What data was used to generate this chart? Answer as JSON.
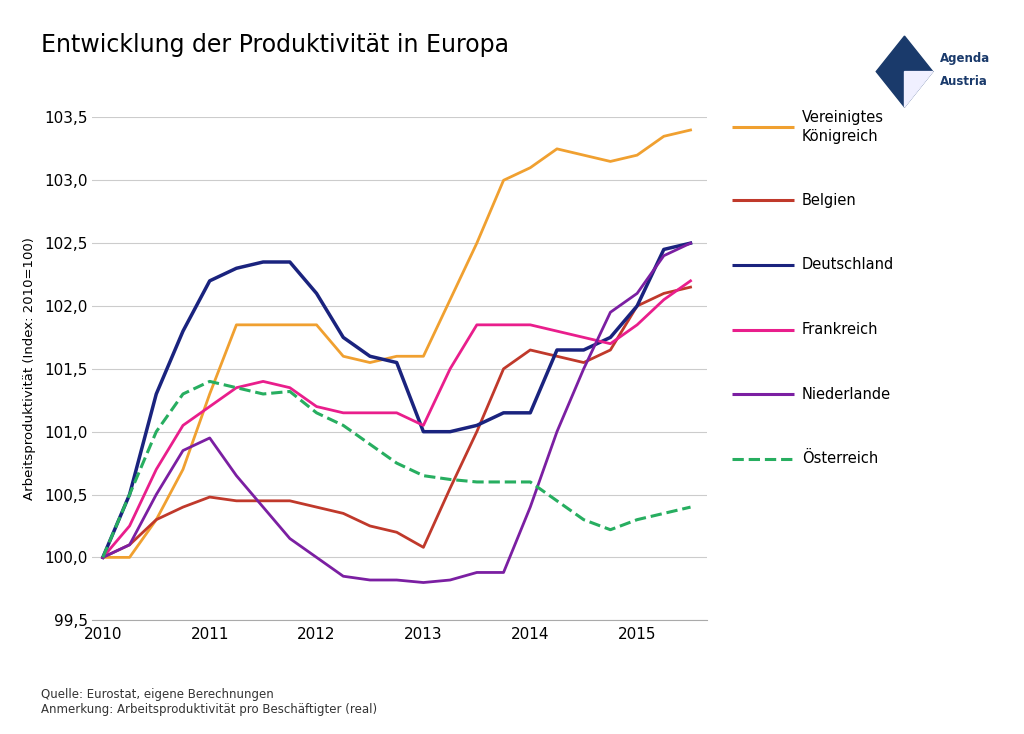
{
  "title": "Entwicklung der Produktivität in Europa",
  "ylabel": "Arbeitsproduktivität (Index: 2010=100)",
  "source_text": "Quelle: Eurostat, eigene Berechnungen\nAnmerkung: Arbeitsproduktivität pro Beschäftigter (real)",
  "ylim": [
    99.5,
    103.5
  ],
  "yticks": [
    99.5,
    100.0,
    100.5,
    101.0,
    101.5,
    102.0,
    102.5,
    103.0,
    103.5
  ],
  "background_color": "#ffffff",
  "grid_color": "#cccccc",
  "series": {
    "Vereinigtes Königreich": {
      "color": "#f0a030",
      "linestyle": "-",
      "linewidth": 2.0,
      "x": [
        2010.0,
        2010.25,
        2010.5,
        2010.75,
        2011.0,
        2011.25,
        2011.5,
        2011.75,
        2012.0,
        2012.25,
        2012.5,
        2012.75,
        2013.0,
        2013.25,
        2013.5,
        2013.75,
        2014.0,
        2014.25,
        2014.5,
        2014.75,
        2015.0,
        2015.25,
        2015.5
      ],
      "y": [
        100.0,
        100.0,
        100.3,
        100.7,
        101.3,
        101.85,
        101.85,
        101.85,
        101.85,
        101.6,
        101.55,
        101.6,
        101.6,
        102.05,
        102.5,
        103.0,
        103.1,
        103.25,
        103.2,
        103.15,
        103.2,
        103.35,
        103.4
      ]
    },
    "Belgien": {
      "color": "#c0392b",
      "linestyle": "-",
      "linewidth": 2.0,
      "x": [
        2010.0,
        2010.25,
        2010.5,
        2010.75,
        2011.0,
        2011.25,
        2011.5,
        2011.75,
        2012.0,
        2012.25,
        2012.5,
        2012.75,
        2013.0,
        2013.25,
        2013.5,
        2013.75,
        2014.0,
        2014.25,
        2014.5,
        2014.75,
        2015.0,
        2015.25,
        2015.5
      ],
      "y": [
        100.0,
        100.1,
        100.3,
        100.4,
        100.48,
        100.45,
        100.45,
        100.45,
        100.4,
        100.35,
        100.25,
        100.2,
        100.08,
        100.55,
        101.0,
        101.5,
        101.65,
        101.6,
        101.55,
        101.65,
        102.0,
        102.1,
        102.15
      ]
    },
    "Deutschland": {
      "color": "#1a237e",
      "linestyle": "-",
      "linewidth": 2.5,
      "x": [
        2010.0,
        2010.25,
        2010.5,
        2010.75,
        2011.0,
        2011.25,
        2011.5,
        2011.75,
        2012.0,
        2012.25,
        2012.5,
        2012.75,
        2013.0,
        2013.25,
        2013.5,
        2013.75,
        2014.0,
        2014.25,
        2014.5,
        2014.75,
        2015.0,
        2015.25,
        2015.5
      ],
      "y": [
        100.0,
        100.5,
        101.3,
        101.8,
        102.2,
        102.3,
        102.35,
        102.35,
        102.1,
        101.75,
        101.6,
        101.55,
        101.0,
        101.0,
        101.05,
        101.15,
        101.15,
        101.65,
        101.65,
        101.75,
        102.0,
        102.45,
        102.5
      ]
    },
    "Frankreich": {
      "color": "#e91e8c",
      "linestyle": "-",
      "linewidth": 2.0,
      "x": [
        2010.0,
        2010.25,
        2010.5,
        2010.75,
        2011.0,
        2011.25,
        2011.5,
        2011.75,
        2012.0,
        2012.25,
        2012.5,
        2012.75,
        2013.0,
        2013.25,
        2013.5,
        2013.75,
        2014.0,
        2014.25,
        2014.5,
        2014.75,
        2015.0,
        2015.25,
        2015.5
      ],
      "y": [
        100.0,
        100.25,
        100.7,
        101.05,
        101.2,
        101.35,
        101.4,
        101.35,
        101.2,
        101.15,
        101.15,
        101.15,
        101.05,
        101.5,
        101.85,
        101.85,
        101.85,
        101.8,
        101.75,
        101.7,
        101.85,
        102.05,
        102.2
      ]
    },
    "Niederlande": {
      "color": "#7b1fa2",
      "linestyle": "-",
      "linewidth": 2.0,
      "x": [
        2010.0,
        2010.25,
        2010.5,
        2010.75,
        2011.0,
        2011.25,
        2011.5,
        2011.75,
        2012.0,
        2012.25,
        2012.5,
        2012.75,
        2013.0,
        2013.25,
        2013.5,
        2013.75,
        2014.0,
        2014.25,
        2014.5,
        2014.75,
        2015.0,
        2015.25,
        2015.5
      ],
      "y": [
        100.0,
        100.1,
        100.5,
        100.85,
        100.95,
        100.65,
        100.4,
        100.15,
        100.0,
        99.85,
        99.82,
        99.82,
        99.8,
        99.82,
        99.88,
        99.88,
        100.4,
        101.0,
        101.5,
        101.95,
        102.1,
        102.4,
        102.5
      ]
    },
    "Österreich": {
      "color": "#27ae60",
      "linestyle": "--",
      "linewidth": 2.2,
      "x": [
        2010.0,
        2010.25,
        2010.5,
        2010.75,
        2011.0,
        2011.25,
        2011.5,
        2011.75,
        2012.0,
        2012.25,
        2012.5,
        2012.75,
        2013.0,
        2013.25,
        2013.5,
        2013.75,
        2014.0,
        2014.25,
        2014.5,
        2014.75,
        2015.0,
        2015.25,
        2015.5
      ],
      "y": [
        100.0,
        100.5,
        101.0,
        101.3,
        101.4,
        101.35,
        101.3,
        101.32,
        101.15,
        101.05,
        100.9,
        100.75,
        100.65,
        100.62,
        100.6,
        100.6,
        100.6,
        100.45,
        100.3,
        100.22,
        100.3,
        100.35,
        100.4
      ]
    }
  },
  "legend_order": [
    "Vereinigtes Königreich",
    "Belgien",
    "Deutschland",
    "Frankreich",
    "Niederlande",
    "Österreich"
  ],
  "xticks": [
    2010,
    2011,
    2012,
    2013,
    2014,
    2015
  ],
  "xlim": [
    2009.9,
    2015.65
  ]
}
